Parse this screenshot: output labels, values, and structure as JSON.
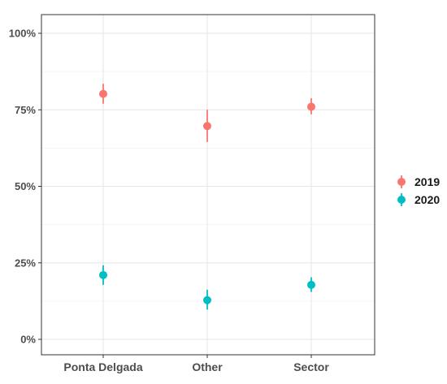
{
  "chart_data": {
    "type": "scatter",
    "subtype": "pointrange",
    "categories": [
      "Ponta Delgada",
      "Other",
      "Sector"
    ],
    "ylim": [
      0,
      1
    ],
    "yticks": [
      0,
      0.25,
      0.5,
      0.75,
      1.0
    ],
    "ytick_labels": [
      "0%",
      "25%",
      "50%",
      "75%",
      "100%"
    ],
    "grid": true,
    "legend_position": "right",
    "series": [
      {
        "name": "2019",
        "color": "#F8766D",
        "values": [
          0.802,
          0.697,
          0.76
        ],
        "lower": [
          0.77,
          0.645,
          0.735
        ],
        "upper": [
          0.835,
          0.75,
          0.788
        ]
      },
      {
        "name": "2020",
        "color": "#00BFC4",
        "values": [
          0.21,
          0.128,
          0.178
        ],
        "lower": [
          0.178,
          0.097,
          0.155
        ],
        "upper": [
          0.242,
          0.162,
          0.203
        ]
      }
    ]
  }
}
